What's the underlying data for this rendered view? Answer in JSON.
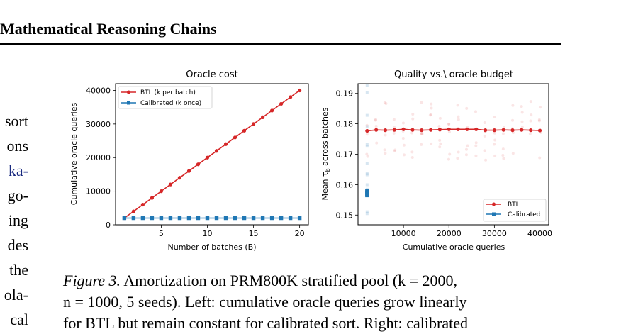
{
  "header": {
    "title": "Mathematical Reasoning Chains"
  },
  "side_text": [
    "sort",
    "ons",
    "ka-",
    "go-",
    "ing",
    "des",
    "the",
    "ola-",
    "cal"
  ],
  "caption": {
    "label": "Figure 3.",
    "line1": "Amortization on PRM800K stratified pool (k = 2000,",
    "line2": "n = 1000, 5 seeds). Left: cumulative oracle queries grow linearly",
    "line3": "for BTL but remain constant for calibrated sort. Right: calibrated"
  },
  "colors": {
    "btl": "#d62728",
    "calibrated": "#1f77b4"
  },
  "chart_data": [
    {
      "type": "line",
      "title": "Oracle cost",
      "xlabel": "Number of batches (B)",
      "ylabel": "Cumulative oracle queries",
      "xlim": [
        0.05,
        20.95
      ],
      "ylim": [
        0,
        42000
      ],
      "xticks": [
        5,
        10,
        15,
        20
      ],
      "yticks": [
        0,
        10000,
        20000,
        30000,
        40000
      ],
      "legend_position": "top-left",
      "x": [
        1,
        2,
        3,
        4,
        5,
        6,
        7,
        8,
        9,
        10,
        11,
        12,
        13,
        14,
        15,
        16,
        17,
        18,
        19,
        20
      ],
      "series": [
        {
          "name": "BTL (k per batch)",
          "color": "#d62728",
          "marker": "circle",
          "values": [
            2000,
            4000,
            6000,
            8000,
            10000,
            12000,
            14000,
            16000,
            18000,
            20000,
            22000,
            24000,
            26000,
            28000,
            30000,
            32000,
            34000,
            36000,
            38000,
            40000
          ]
        },
        {
          "name": "Calibrated (k once)",
          "color": "#1f77b4",
          "marker": "square",
          "values": [
            2000,
            2000,
            2000,
            2000,
            2000,
            2000,
            2000,
            2000,
            2000,
            2000,
            2000,
            2000,
            2000,
            2000,
            2000,
            2000,
            2000,
            2000,
            2000,
            2000
          ]
        }
      ]
    },
    {
      "type": "scatter",
      "title": "Quality vs.\\ oracle budget",
      "xlabel": "Cumulative oracle queries",
      "ylabel": "Mean τ_b across batches",
      "xlim": [
        0,
        41950
      ],
      "ylim": [
        0.1468,
        0.1932
      ],
      "xticks": [
        10000,
        20000,
        30000,
        40000
      ],
      "yticks": [
        0.15,
        0.16,
        0.17,
        0.18,
        0.19
      ],
      "legend_position": "lower-right",
      "series": [
        {
          "name": "BTL",
          "color": "#d62728",
          "marker": "circle",
          "x": [
            2000,
            4000,
            6000,
            8000,
            10000,
            12000,
            14000,
            16000,
            18000,
            20000,
            22000,
            24000,
            26000,
            28000,
            30000,
            32000,
            34000,
            36000,
            38000,
            40000
          ],
          "values": [
            0.1777,
            0.178,
            0.1779,
            0.178,
            0.1782,
            0.178,
            0.1779,
            0.178,
            0.1781,
            0.1782,
            0.1782,
            0.1782,
            0.1782,
            0.1779,
            0.1779,
            0.178,
            0.1779,
            0.178,
            0.1779,
            0.1778
          ]
        },
        {
          "name": "Calibrated",
          "color": "#1f77b4",
          "marker": "square",
          "x": [
            2000,
            2000,
            2000,
            2000
          ],
          "values": [
            0.158,
            0.1575,
            0.157,
            0.1565
          ]
        }
      ]
    }
  ]
}
